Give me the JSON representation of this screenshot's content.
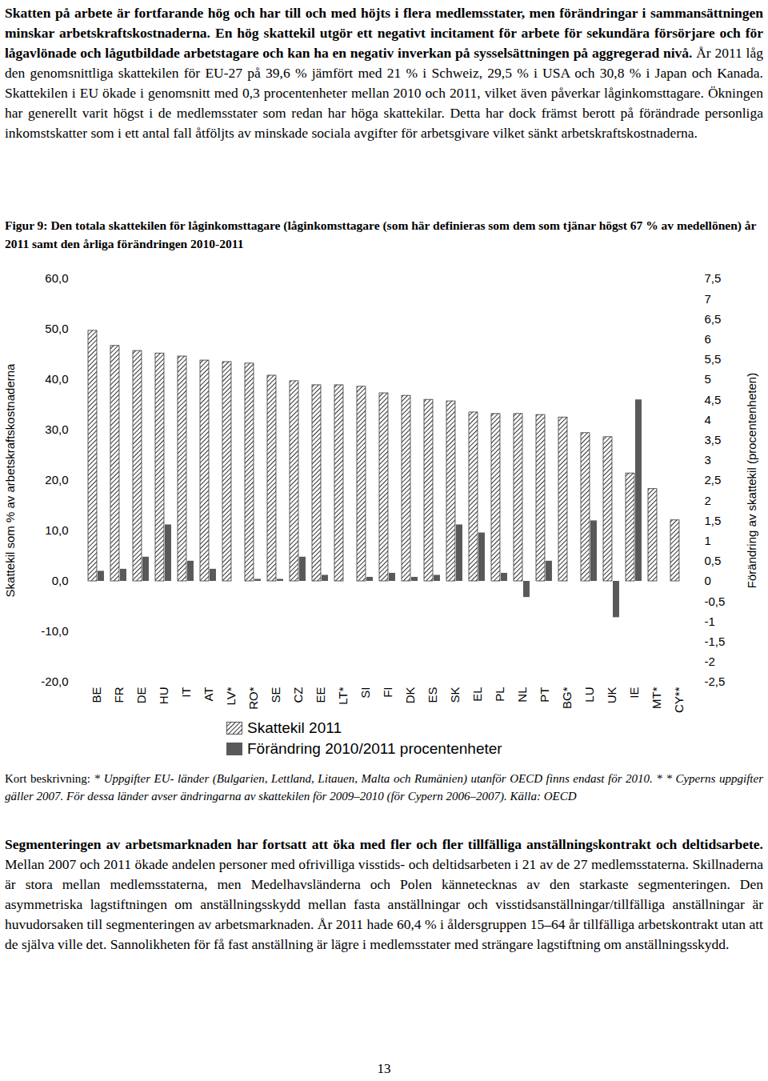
{
  "intro": {
    "lead": "Skatten på arbete är fortfarande hög och har till och med höjts i flera medlemsstater, men förändringar i sammansättningen minskar arbetskraftskostnaderna. En hög skattekil utgör ett negativt incitament för arbete för sekundära försörjare och för lågavlönade och lågutbildade arbetstagare och kan ha en negativ inverkan på sysselsättningen på aggregerad nivå.",
    "body": "År 2011 låg den genomsnittliga skattekilen för EU-27 på 39,6 % jämfört med 21 % i Schweiz, 29,5 % i USA och 30,8 % i Japan och Kanada. Skattekilen i EU ökade i genomsnitt med 0,3 procentenheter mellan 2010 och 2011, vilket även påverkar låginkomsttagare. Ökningen har generellt varit högst i de medlemsstater som redan har höga skattekilar. Detta har dock främst berott på förändrade personliga inkomstskatter som i ett antal fall åtföljts av minskade sociala avgifter för arbetsgivare vilket sänkt arbetskraftskostnaderna."
  },
  "chart_data": {
    "type": "bar",
    "title": "Figur 9: Den totala skattekilen för låginkomsttagare (låginkomsttagare (som här definieras som dem som tjänar högst 67 % av medellönen) år 2011 samt den årliga förändringen 2010-2011",
    "categories": [
      "BE",
      "FR",
      "DE",
      "HU",
      "IT",
      "AT",
      "LV*",
      "RO*",
      "SE",
      "CZ",
      "EE",
      "LT*",
      "SI",
      "FI",
      "DK",
      "ES",
      "SK",
      "EL",
      "PL",
      "NL",
      "PT",
      "BG*",
      "LU",
      "UK",
      "IE",
      "MT*",
      "CY**"
    ],
    "series": [
      {
        "name": "Skattekil 2011",
        "color": "#333333",
        "values": [
          49.7,
          46.7,
          45.7,
          45.2,
          44.6,
          43.8,
          43.5,
          43.2,
          40.8,
          39.7,
          38.9,
          38.9,
          38.6,
          37.3,
          36.8,
          36.0,
          35.7,
          33.5,
          33.2,
          33.2,
          33.0,
          32.5,
          29.4,
          28.6,
          21.4,
          18.3,
          12.1
        ]
      },
      {
        "name": "Förändring 2010/2011 procentenheter",
        "color": "#595959",
        "axis": "y2",
        "values": [
          0.25,
          0.3,
          0.6,
          1.4,
          0.5,
          0.3,
          0,
          0.05,
          0.05,
          0.6,
          0.15,
          0,
          0.1,
          0.2,
          0.1,
          0.15,
          1.4,
          1.2,
          0.2,
          -0.4,
          0.5,
          0,
          1.5,
          -0.9,
          4.5,
          0,
          0
        ]
      }
    ],
    "ylabel": "Skattekil som % av arbetskraftskostnaderna",
    "y2label": "Förändring av skattekil (procentenheten)",
    "ylim": [
      -20,
      60
    ],
    "yticks": [
      {
        "value": -20,
        "label": "-20,0"
      },
      {
        "value": -10,
        "label": "-10,0"
      },
      {
        "value": 0,
        "label": "0,0"
      },
      {
        "value": 10,
        "label": "10,0"
      },
      {
        "value": 20,
        "label": "20,0"
      },
      {
        "value": 30,
        "label": "30,0"
      },
      {
        "value": 40,
        "label": "40,0"
      },
      {
        "value": 50,
        "label": "50,0"
      },
      {
        "value": 60,
        "label": "60,0"
      }
    ],
    "y2lim": [
      -2.5,
      7.5
    ],
    "y2ticks": [
      {
        "value": -2.5,
        "label": "-2,5"
      },
      -2,
      {
        "value": -1.5,
        "label": "-1,5"
      },
      -1,
      {
        "value": -0.5,
        "label": "-0,5"
      },
      0,
      {
        "value": 0.5,
        "label": "0,5"
      },
      1,
      {
        "value": 1.5,
        "label": "1,5"
      },
      2,
      {
        "value": 2.5,
        "label": "2,5"
      },
      3,
      {
        "value": 3.5,
        "label": "3,5"
      },
      4,
      {
        "value": 4.5,
        "label": "4,5"
      },
      5,
      {
        "value": 5.5,
        "label": "5,5"
      },
      6,
      {
        "value": 6.5,
        "label": "6,5"
      },
      7,
      {
        "value": 7.5,
        "label": "7,5"
      }
    ],
    "grid": false,
    "legend": "bottom"
  },
  "notes": {
    "label": "Kort beskrivning:",
    "text": "* Uppgifter EU- länder (Bulgarien, Lettland, Litauen, Malta och Rumänien) utanför OECD finns endast för 2010. * * Cyperns uppgifter gäller 2007. För dessa länder avser ändringarna av skattekilen för 2009–2010 (för Cypern 2006–2007). Källa: OECD"
  },
  "section": {
    "lead": "Segmenteringen av arbetsmarknaden har fortsatt att öka med fler och fler tillfälliga anställningskontrakt och deltidsarbete.",
    "body": "Mellan 2007 och 2011 ökade andelen personer med ofrivilliga visstids- och deltidsarbeten i 21 av de 27 medlemsstaterna. Skillnaderna är stora mellan medlemsstaterna, men Medelhavsländerna och Polen kännetecknas av den starkaste segmenteringen. Den asymmetriska lagstiftningen om anställningsskydd mellan fasta anställningar och visstidsanställningar/tillfälliga anställningar är huvudorsaken till segmenteringen av arbetsmarknaden. År 2011 hade 60,4 % i åldersgruppen 15–64 år tillfälliga arbetskontrakt utan att de själva ville det. Sannolikheten för få fast anställning är lägre i medlemsstater med strängare lagstiftning om anställningsskydd."
  },
  "page_number": "13"
}
